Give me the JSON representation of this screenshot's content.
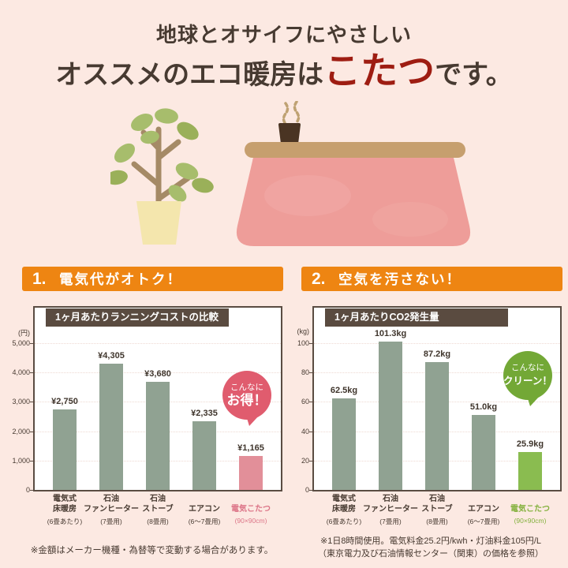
{
  "page": {
    "title_line1": "地球とオサイフにやさしい",
    "title_line2_prefix": "オススメのエコ暖房は",
    "title_line2_highlight": "こたつ",
    "title_line2_suffix": "です。"
  },
  "colors": {
    "background": "#fce9e2",
    "title_text": "#473a31",
    "title_highlight": "#9e1d12",
    "section_header_bg": "#ee8512",
    "section_header_text": "#ffffff",
    "chart_title_bg": "#5a4b40",
    "chart_border": "#5a4c42",
    "grid_line": "#eed9d2",
    "axis_text": "#473a31"
  },
  "sections": [
    {
      "number": "1.",
      "heading": "電気代がオトク！"
    },
    {
      "number": "2.",
      "heading": "空気を汚さない！"
    }
  ],
  "chart_data": [
    {
      "type": "bar",
      "title": "1ヶ月あたりランニングコストの比較",
      "unit_label": "(円)",
      "ylim": [
        0,
        5000
      ],
      "yticks": [
        0,
        1000,
        2000,
        3000,
        4000,
        5000
      ],
      "ytick_labels": [
        "0",
        "1,000",
        "2,000",
        "3,000",
        "4,000",
        "5,000"
      ],
      "categories": [
        {
          "line1": "電気式",
          "line2": "床暖房",
          "sub": "(6畳あたり)"
        },
        {
          "line1": "石油",
          "line2": "ファンヒーター",
          "sub": "(7畳用)"
        },
        {
          "line1": "石油",
          "line2": "ストーブ",
          "sub": "(8畳用)"
        },
        {
          "line1": "",
          "line2": "エアコン",
          "sub": "(6〜7畳用)"
        },
        {
          "line1": "",
          "line2": "電気こたつ",
          "sub": "(90×90cm)",
          "highlight": true
        }
      ],
      "values": [
        2750,
        4305,
        3680,
        2335,
        1165
      ],
      "value_labels": [
        "¥2,750",
        "¥4,305",
        "¥3,680",
        "¥2,335",
        "¥1,165"
      ],
      "bar_color": "#90a292",
      "highlight_color": "#e28f99",
      "highlight_label_color": "#dc7487",
      "grid": true,
      "legend": "none",
      "badge": {
        "line1": "こんなに",
        "line2": "お得！",
        "color": "#e05c6e"
      }
    },
    {
      "type": "bar",
      "title": "1ヶ月あたりCO2発生量",
      "unit_label": "(kg)",
      "ylim": [
        0,
        100
      ],
      "yticks": [
        0,
        20,
        40,
        60,
        80,
        100
      ],
      "ytick_labels": [
        "0",
        "20",
        "40",
        "60",
        "80",
        "100"
      ],
      "categories": [
        {
          "line1": "電気式",
          "line2": "床暖房",
          "sub": "(6畳あたり)"
        },
        {
          "line1": "石油",
          "line2": "ファンヒーター",
          "sub": "(7畳用)"
        },
        {
          "line1": "石油",
          "line2": "ストーブ",
          "sub": "(8畳用)"
        },
        {
          "line1": "",
          "line2": "エアコン",
          "sub": "(6〜7畳用)"
        },
        {
          "line1": "",
          "line2": "電気こたつ",
          "sub": "(90×90cm)",
          "highlight": true
        }
      ],
      "values": [
        62.5,
        101.3,
        87.2,
        51.0,
        25.9
      ],
      "value_labels": [
        "62.5kg",
        "101.3kg",
        "87.2kg",
        "51.0kg",
        "25.9kg"
      ],
      "bar_color": "#90a292",
      "highlight_color": "#8abc50",
      "highlight_label_color": "#84b13e",
      "grid": true,
      "legend": "none",
      "badge": {
        "line1": "こんなに",
        "line2": "クリーン！",
        "color": "#73a836"
      }
    }
  ],
  "footnotes": {
    "left": "※金額はメーカー機種・為替等で変動する場合があります。",
    "right_line1": "※1日8時間使用。電気料金25.2円/kwh・灯油料金105円/L",
    "right_line2": "（東京電力及び石油情報センター（関東）の価格を参照）"
  },
  "icons": {
    "plant": "potted-plant-illustration",
    "kotatsu": "kotatsu-illustration",
    "teacup": "teacup-icon",
    "steam": "steam-icon"
  }
}
